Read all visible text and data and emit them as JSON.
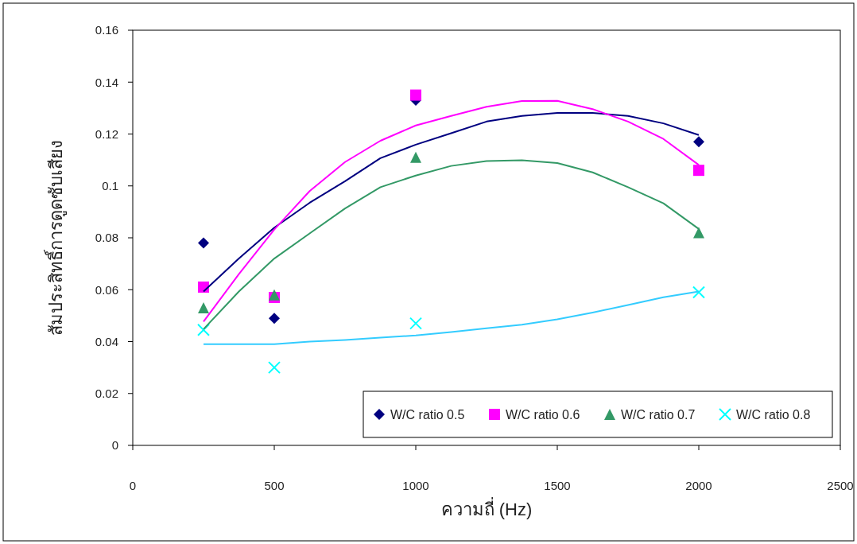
{
  "chart_data": {
    "type": "scatter",
    "xlabel": "ความถี่ (Hz)",
    "ylabel": "สัมประสิทธิ์การดูดซับเสียง",
    "xlim": [
      0,
      2500
    ],
    "xticks": [
      0,
      500,
      1000,
      1500,
      2000,
      2500
    ],
    "ylim": [
      0,
      0.16
    ],
    "yticks": [
      0,
      0.02,
      0.04,
      0.06,
      0.08,
      {
        "value": 0.1,
        "label": "0.1"
      },
      0.12,
      0.14,
      0.16
    ],
    "grid": false,
    "legend": "bottom right",
    "series": [
      {
        "name": "W/C ratio 0.5",
        "marker": "diamond",
        "color": "#000080",
        "x": [
          250,
          500,
          1000,
          2000
        ],
        "values": [
          0.078,
          0.049,
          0.133,
          0.117
        ]
      },
      {
        "name": "W/C ratio 0.6",
        "marker": "square",
        "color": "#ff00ff",
        "x": [
          250,
          500,
          1000,
          2000
        ],
        "values": [
          0.061,
          0.057,
          0.135,
          0.106
        ]
      },
      {
        "name": "W/C ratio 0.7",
        "marker": "triangle",
        "color": "#339966",
        "x": [
          250,
          500,
          1000,
          2000
        ],
        "values": [
          0.053,
          0.058,
          0.111,
          0.082
        ]
      },
      {
        "name": "W/C ratio 0.8",
        "marker": "cross",
        "color": "#00ffff",
        "x": [
          250,
          500,
          1000,
          2000
        ],
        "values": [
          0.0445,
          0.03,
          0.047,
          0.059
        ]
      },
      {
        "type": "line",
        "marker": "none",
        "color": "#000080",
        "x": [
          250,
          375,
          500,
          625,
          750,
          875,
          1000,
          1125,
          1250,
          1375,
          1500,
          1625,
          1750,
          1875,
          2000
        ],
        "values": [
          0.0593,
          0.072,
          0.0839,
          0.0935,
          0.1018,
          0.1107,
          0.1159,
          0.1203,
          0.1248,
          0.127,
          0.1281,
          0.1281,
          0.127,
          0.1241,
          0.1196
        ]
      },
      {
        "type": "line",
        "marker": "none",
        "color": "#ff00ff",
        "x": [
          250,
          375,
          500,
          625,
          750,
          875,
          1000,
          1125,
          1250,
          1375,
          1500,
          1625,
          1750,
          1875,
          2000
        ],
        "values": [
          0.0477,
          0.066,
          0.0832,
          0.098,
          0.1092,
          0.1174,
          0.1233,
          0.127,
          0.1305,
          0.1327,
          0.1328,
          0.1296,
          0.1248,
          0.1181,
          0.1081
        ]
      },
      {
        "type": "line",
        "marker": "none",
        "color": "#339966",
        "x": [
          250,
          375,
          500,
          625,
          750,
          875,
          1000,
          1125,
          1250,
          1375,
          1500,
          1625,
          1750,
          1875,
          2000
        ],
        "values": [
          0.0448,
          0.0593,
          0.072,
          0.0817,
          0.0913,
          0.0995,
          0.104,
          0.1077,
          0.1096,
          0.1099,
          0.1088,
          0.1052,
          0.0995,
          0.0933,
          0.0834
        ]
      },
      {
        "type": "line",
        "marker": "none",
        "color": "#33ccff",
        "x": [
          250,
          375,
          500,
          625,
          750,
          875,
          1000,
          1125,
          1250,
          1375,
          1500,
          1625,
          1750,
          1875,
          2000
        ],
        "values": [
          0.039,
          0.039,
          0.039,
          0.04,
          0.0406,
          0.0415,
          0.0424,
          0.0437,
          0.0451,
          0.0465,
          0.0486,
          0.0512,
          0.0541,
          0.0571,
          0.0593
        ]
      }
    ]
  }
}
